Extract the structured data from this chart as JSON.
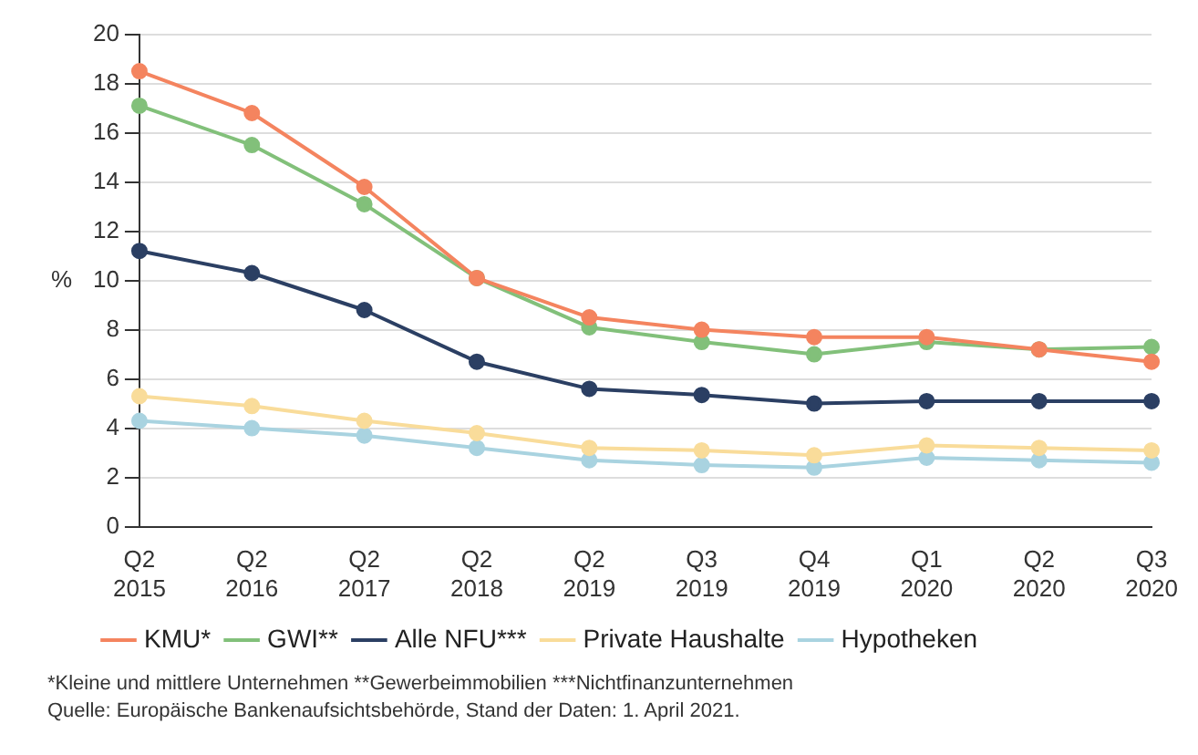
{
  "chart_data": {
    "type": "line",
    "ylabel": "%",
    "categories": [
      "Q2 2015",
      "Q2 2016",
      "Q2 2017",
      "Q2 2018",
      "Q2 2019",
      "Q3 2019",
      "Q4 2019",
      "Q1 2020",
      "Q2 2020",
      "Q3 2020"
    ],
    "series": [
      {
        "name": "KMU*",
        "color": "#f4845f",
        "values": [
          18.5,
          16.8,
          13.8,
          10.1,
          8.5,
          8.0,
          7.7,
          7.7,
          7.2,
          6.7
        ]
      },
      {
        "name": "GWI**",
        "color": "#82c07a",
        "values": [
          17.1,
          15.5,
          13.1,
          10.1,
          8.1,
          7.5,
          7.0,
          7.5,
          7.2,
          7.3
        ]
      },
      {
        "name": "Alle NFU***",
        "color": "#2b3f63",
        "values": [
          11.2,
          10.3,
          8.8,
          6.7,
          5.6,
          5.35,
          5.0,
          5.1,
          5.1,
          5.1
        ]
      },
      {
        "name": "Private Haushalte",
        "color": "#f9dc9a",
        "values": [
          5.3,
          4.9,
          4.3,
          3.8,
          3.2,
          3.1,
          2.9,
          3.3,
          3.2,
          3.1
        ]
      },
      {
        "name": "Hypotheken",
        "color": "#a9d3e0",
        "values": [
          4.3,
          4.0,
          3.7,
          3.2,
          2.7,
          2.5,
          2.4,
          2.8,
          2.7,
          2.6
        ]
      }
    ],
    "ylim": [
      0,
      20
    ],
    "yticks": [
      0,
      2,
      4,
      6,
      8,
      10,
      12,
      14,
      16,
      18,
      20
    ],
    "grid": "y",
    "legend": "bottom",
    "marker": "circle",
    "line_style": "solid",
    "annotations": [
      "*Kleine und mittlere Unternehmen **Gewerbeimmobilien  ***Nichtfinanzunternehmen",
      "Quelle: Europäische Bankenaufsichtsbehörde, Stand der Daten: 1. April 2021."
    ]
  }
}
